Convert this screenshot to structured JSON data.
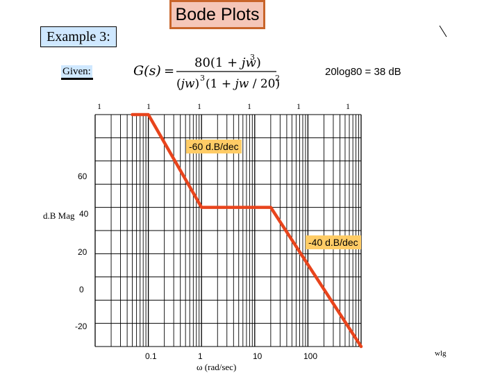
{
  "header": {
    "title": "Bode Plots",
    "example": "Example 3:",
    "given": "Given:",
    "formula_text": "G(s) = 80(1 + jw)^3 / ((jw)^3 (1 + jw/20)^2)",
    "result": "20log80 = 38 dB"
  },
  "top_ticks": [
    "1",
    "1",
    "1",
    "1",
    "1",
    "1"
  ],
  "chart_data": {
    "type": "line",
    "xscale": "log",
    "xlim": [
      0.01,
      1000
    ],
    "ylim": [
      -20,
      80
    ],
    "x_ticks": [
      "0.1",
      "1",
      "10",
      "100"
    ],
    "y_ticks": [
      "60",
      "40",
      "20",
      "0",
      "-20"
    ],
    "xlabel": "ω (rad/sec)",
    "ylabel": "d.B Mag",
    "grid": true,
    "series": [
      {
        "x": [
          0.05,
          0.1,
          1,
          20,
          1000
        ],
        "y": [
          80,
          80,
          40,
          40,
          -20
        ]
      }
    ],
    "annotations": [
      "-60 d.B/dec",
      "-40 d.B/dec"
    ],
    "line_color": "#e8441c"
  },
  "footer": "wlg"
}
